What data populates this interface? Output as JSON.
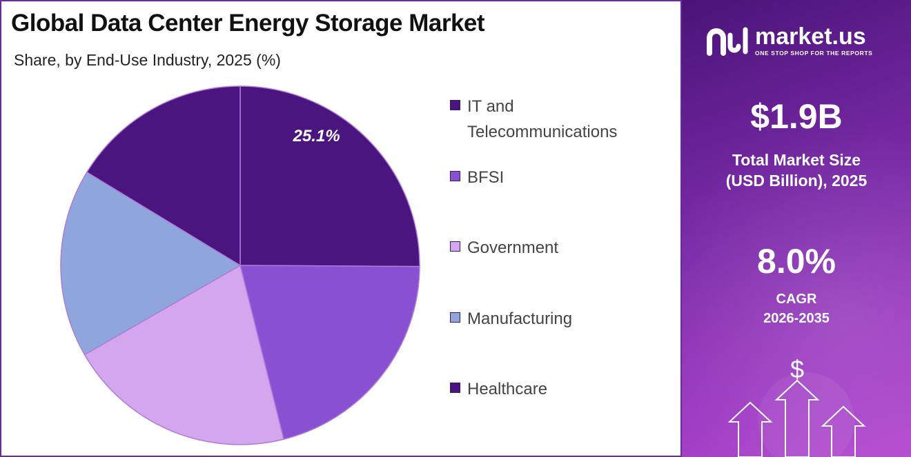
{
  "header": {
    "title": "Global Data Center Energy Storage Market",
    "subtitle": "Share, by End-Use Industry, 2025 (%)"
  },
  "chart_data": {
    "type": "pie",
    "title": "Global Data Center Energy Storage Market",
    "subtitle": "Share, by End-Use Industry, 2025 (%)",
    "categories": [
      "IT and Telecommunications",
      "BFSI",
      "Government",
      "Manufacturing",
      "Healthcare"
    ],
    "values": [
      25.1,
      21.0,
      20.6,
      17.0,
      16.3
    ],
    "colors": [
      "#4b1580",
      "#8a50d2",
      "#d3a6ee",
      "#8fa6dc",
      "#4b1580"
    ],
    "data_labels": [
      "25.1%",
      "",
      "",
      "",
      ""
    ],
    "legend_position": "right"
  },
  "legend": {
    "items": [
      {
        "label": "IT and Telecommunications",
        "color": "#4b1580"
      },
      {
        "label": "BFSI",
        "color": "#8a50d2"
      },
      {
        "label": "Government",
        "color": "#d3a6ee"
      },
      {
        "label": "Manufacturing",
        "color": "#8fa6dc"
      },
      {
        "label": "Healthcare",
        "color": "#4b1580"
      }
    ]
  },
  "brand": {
    "name": "market.us",
    "tagline": "ONE STOP SHOP FOR THE REPORTS",
    "logo_icon": "market-us-logo-icon"
  },
  "stats": {
    "market_size_value": "$1.9B",
    "market_size_label_line1": "Total Market Size",
    "market_size_label_line2": "(USD Billion), 2025",
    "cagr_value": "8.0%",
    "cagr_label_line1": "CAGR",
    "cagr_label_line2": "2026-2035"
  },
  "decoration": {
    "currency_symbol": "$",
    "icon": "growth-arrows-icon"
  },
  "theme": {
    "accent": "#6a2a9a",
    "panel_dark": "#4a1478",
    "panel_light": "#b44ad0"
  }
}
